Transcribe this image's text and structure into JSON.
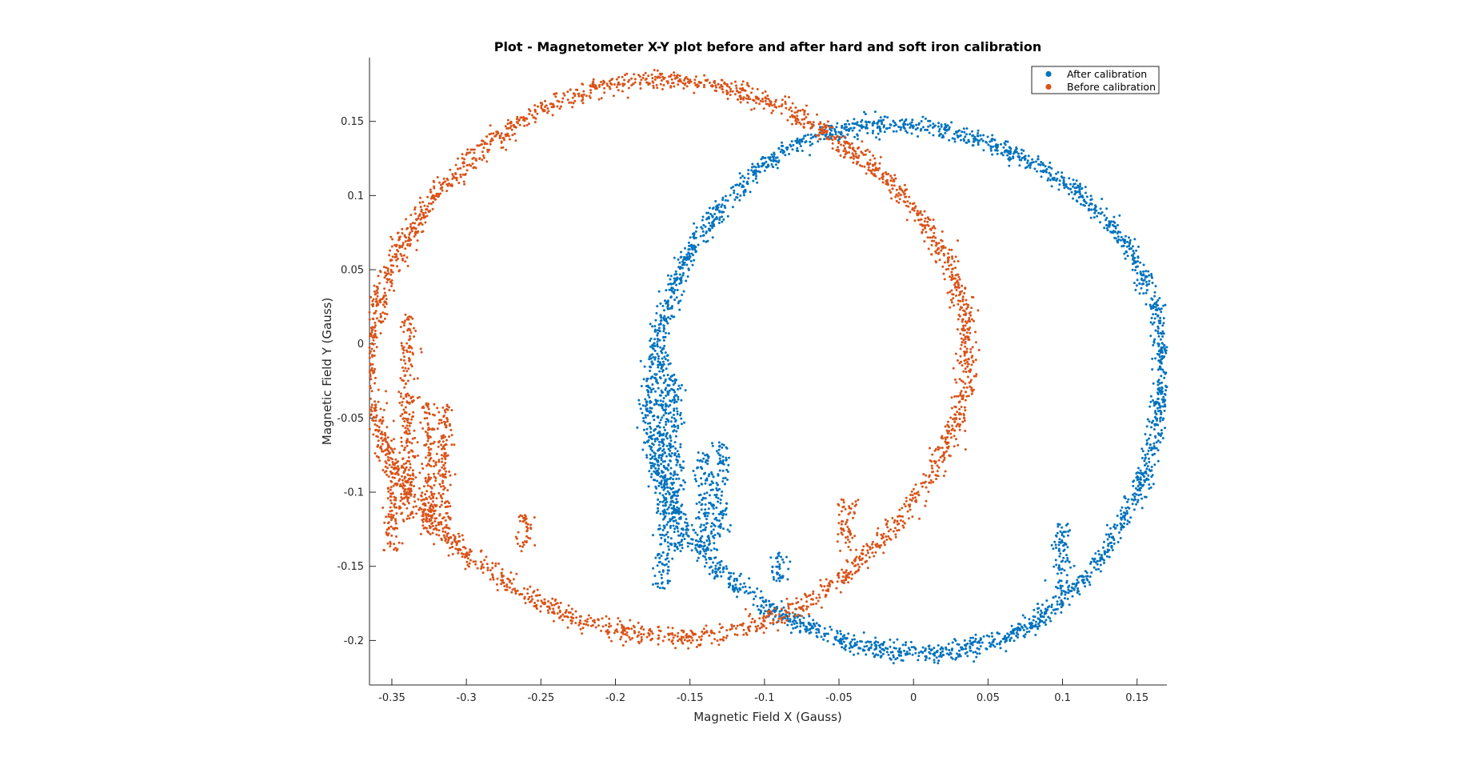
{
  "chart_data": {
    "type": "scatter",
    "title": "Plot - Magnetometer X-Y plot before and after hard and soft iron calibration",
    "xlabel": "Magnetic Field X (Gauss)",
    "ylabel": "Magnetic Field Y (Gauss)",
    "xlim": [
      -0.365,
      0.17
    ],
    "ylim": [
      -0.23,
      0.193
    ],
    "xticks": [
      -0.35,
      -0.3,
      -0.25,
      -0.2,
      -0.15,
      -0.1,
      -0.05,
      0,
      0.05,
      0.1,
      0.15
    ],
    "xtick_labels": [
      "-0.35",
      "-0.3",
      "-0.25",
      "-0.2",
      "-0.15",
      "-0.1",
      "-0.05",
      "0",
      "0.05",
      "0.1",
      "0.15"
    ],
    "yticks": [
      0.15,
      0.1,
      0.05,
      0,
      -0.05,
      -0.1,
      -0.15,
      -0.2
    ],
    "ytick_labels": [
      "0.15",
      "0.1",
      "0.05",
      "0",
      "-0.05",
      "-0.1",
      "-0.15",
      "-0.2"
    ],
    "grid": false,
    "legend_position": "top-right",
    "series": [
      {
        "name": "After calibration",
        "color": "#0072BD",
        "ring": {
          "cx": -0.005,
          "cy": -0.03,
          "rx": 0.172,
          "ry": 0.178
        },
        "features": [
          {
            "x": -0.168,
            "y": [
              -0.165,
              0.0
            ]
          },
          {
            "x": -0.16,
            "y": [
              -0.14,
              -0.02
            ]
          },
          {
            "x": -0.14,
            "y": [
              -0.14,
              -0.07
            ]
          },
          {
            "x": -0.13,
            "y": [
              -0.13,
              -0.065
            ]
          },
          {
            "x": 0.1,
            "y": [
              -0.17,
              -0.12
            ]
          },
          {
            "x": -0.09,
            "y": [
              -0.16,
              -0.14
            ]
          }
        ]
      },
      {
        "name": "Before calibration",
        "color": "#D95319",
        "ring": {
          "cx": -0.165,
          "cy": -0.01,
          "rx": 0.198,
          "ry": 0.185
        },
        "features": [
          {
            "x": -0.35,
            "y": [
              -0.14,
              -0.08
            ]
          },
          {
            "x": -0.34,
            "y": [
              -0.12,
              0.02
            ]
          },
          {
            "x": -0.325,
            "y": [
              -0.13,
              -0.04
            ]
          },
          {
            "x": -0.315,
            "y": [
              -0.12,
              -0.04
            ]
          },
          {
            "x": -0.26,
            "y": [
              -0.14,
              -0.115
            ]
          },
          {
            "x": -0.045,
            "y": [
              -0.14,
              -0.105
            ]
          }
        ]
      }
    ]
  }
}
